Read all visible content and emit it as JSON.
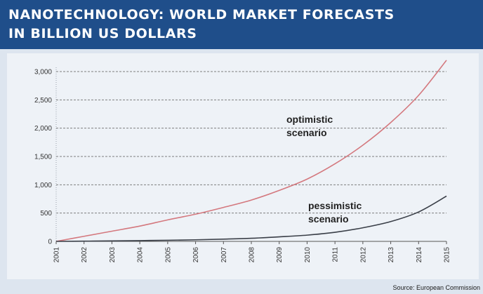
{
  "header": {
    "title_line1": "NANOTECHNOLOGY: WORLD MARKET FORECASTS",
    "title_line2": "IN BILLION US DOLLARS"
  },
  "source": "Source: European Commission",
  "colors": {
    "header_bg": "#1f4e8a",
    "optimistic_line": "#d4787e",
    "pessimistic_line": "#3a3f48",
    "gridline": "#7f7f7f"
  },
  "chart_data": {
    "type": "line",
    "title": "NANOTECHNOLOGY: WORLD MARKET FORECASTS IN BILLION US DOLLARS",
    "x": [
      "2001",
      "2002",
      "2003",
      "2004",
      "2005",
      "2006",
      "2007",
      "2008",
      "2009",
      "2010",
      "2011",
      "2012",
      "2013",
      "2014",
      "2015"
    ],
    "ylim": [
      0,
      3000
    ],
    "yticks": [
      0,
      500,
      1000,
      1500,
      2000,
      2500,
      3000
    ],
    "ytick_labels": [
      "0",
      "500",
      "1,000",
      "1,500",
      "2,000",
      "2,500",
      "3,000"
    ],
    "grid": "horizontal dashed",
    "series": [
      {
        "name": "optimistic scenario",
        "label_lines": [
          "optimistic",
          "scenario"
        ],
        "color": "#d4787e",
        "values": [
          0,
          90,
          180,
          270,
          380,
          480,
          600,
          730,
          900,
          1100,
          1370,
          1700,
          2100,
          2580,
          3200
        ]
      },
      {
        "name": "pessimistic scenario",
        "label_lines": [
          "pessimistic",
          "scenario"
        ],
        "color": "#3a3f48",
        "values": [
          0,
          4,
          8,
          14,
          20,
          28,
          40,
          55,
          80,
          110,
          160,
          240,
          350,
          520,
          800
        ]
      }
    ]
  }
}
